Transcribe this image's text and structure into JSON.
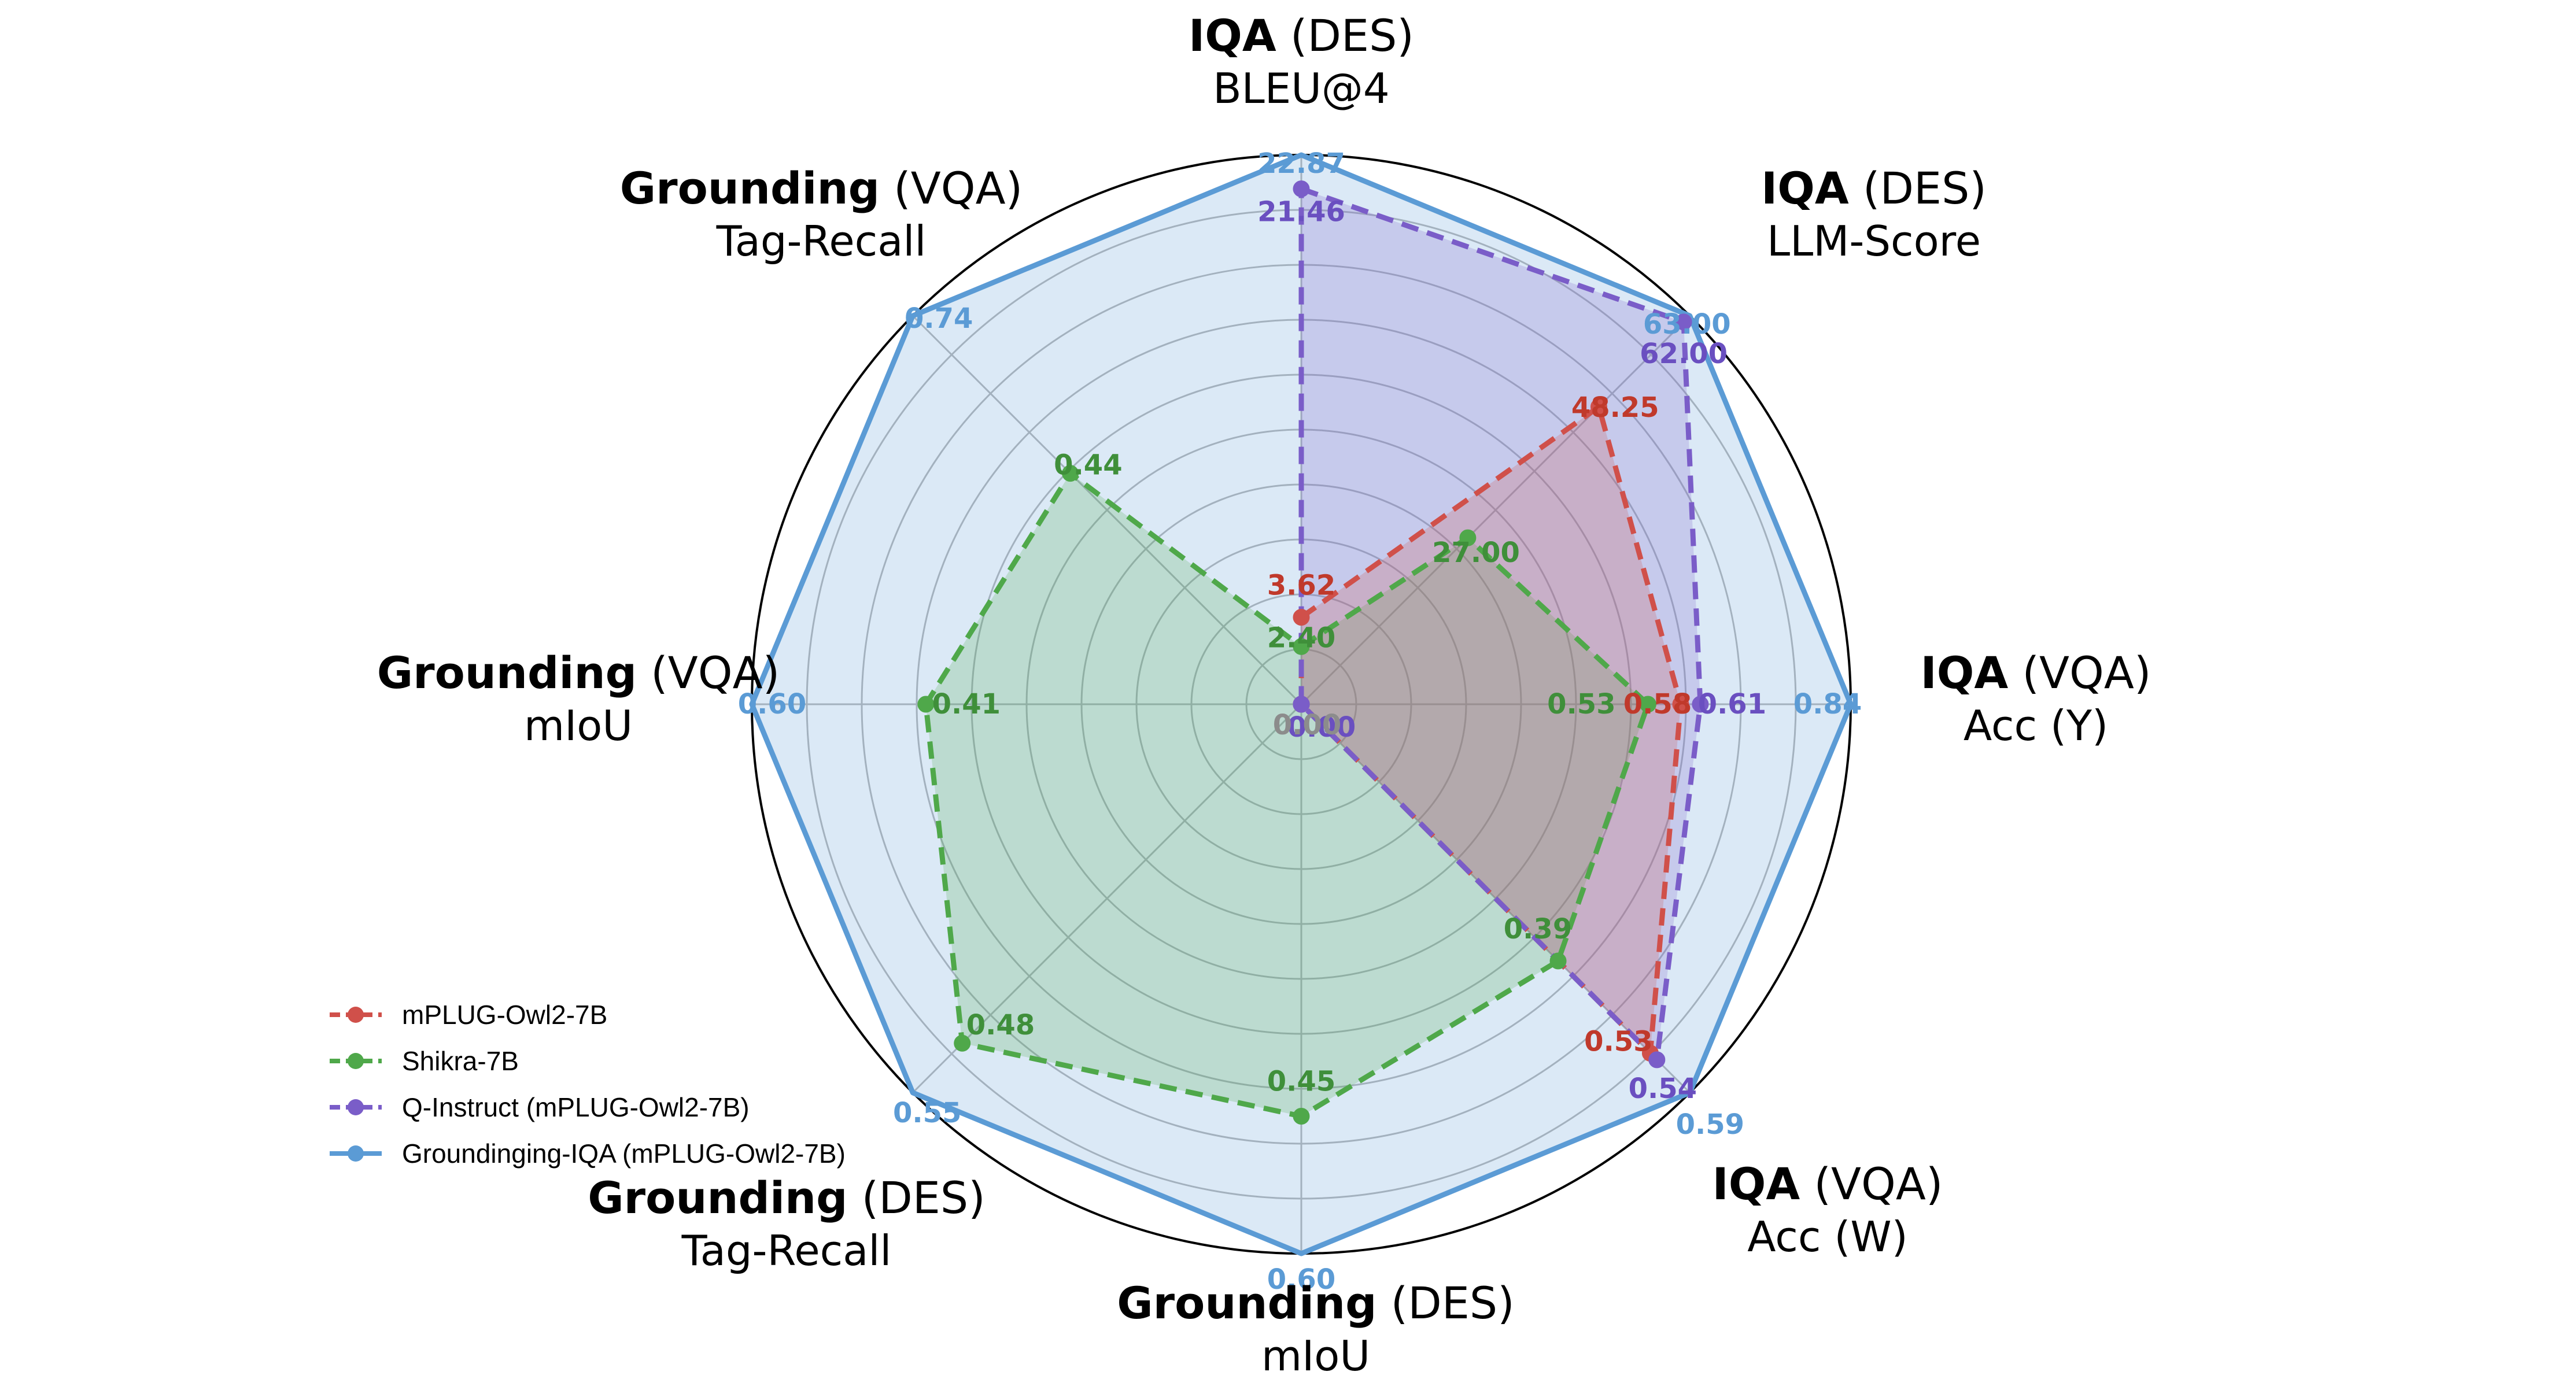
{
  "chart_data": {
    "type": "radar",
    "axes": [
      {
        "bold": "IQA",
        "rest": " (DES)",
        "metric": "BLEU@4"
      },
      {
        "bold": "IQA",
        "rest": " (DES)",
        "metric": "LLM-Score"
      },
      {
        "bold": "IQA",
        "rest": " (VQA)",
        "metric": "Acc (Y)"
      },
      {
        "bold": "IQA",
        "rest": " (VQA)",
        "metric": "Acc (W)"
      },
      {
        "bold": "Grounding",
        "rest": " (DES)",
        "metric": "mIoU"
      },
      {
        "bold": "Grounding",
        "rest": " (DES)",
        "metric": "Tag-Recall"
      },
      {
        "bold": "Grounding",
        "rest": " (VQA)",
        "metric": "mIoU"
      },
      {
        "bold": "Grounding",
        "rest": " (VQA)",
        "metric": "Tag-Recall"
      }
    ],
    "series": [
      {
        "name": "mPLUG-Owl2-7B",
        "color": "#d0504a",
        "style": "dashed",
        "values": [
          3.62,
          48.25,
          0.58,
          0.53,
          0.0,
          0.0,
          0.0,
          0.0
        ],
        "labels": [
          "3.62",
          "48.25",
          "0.58",
          "0.53",
          null,
          null,
          null,
          null
        ]
      },
      {
        "name": "Shikra-7B",
        "color": "#4fa84a",
        "style": "dashed",
        "values": [
          2.4,
          27.0,
          0.53,
          0.39,
          0.45,
          0.48,
          0.41,
          0.44
        ],
        "labels": [
          "2.40",
          "27.00",
          "0.53",
          "0.39",
          "0.45",
          "0.48",
          "0.41",
          "0.44"
        ]
      },
      {
        "name": "Q-Instruct (mPLUG-Owl2-7B)",
        "color": "#7a5dc8",
        "style": "dashed",
        "values": [
          21.46,
          62.0,
          0.61,
          0.54,
          0.0,
          0.0,
          0.0,
          0.0
        ],
        "labels": [
          "21.46",
          "62.00",
          "0.61",
          "0.54",
          "0.00",
          null,
          null,
          null
        ]
      },
      {
        "name": "Groundinging-IQA (mPLUG-Owl2-7B)",
        "color": "#5b9bd5",
        "style": "solid",
        "values": [
          22.87,
          63.0,
          0.84,
          0.59,
          0.6,
          0.55,
          0.6,
          0.74
        ],
        "labels": [
          "22.87",
          "63.00",
          "0.84",
          "0.59",
          "0.60",
          "0.55",
          "0.60",
          "0.74"
        ]
      }
    ],
    "center_label": "0.00",
    "legend_position": "lower-left",
    "grid": true
  }
}
